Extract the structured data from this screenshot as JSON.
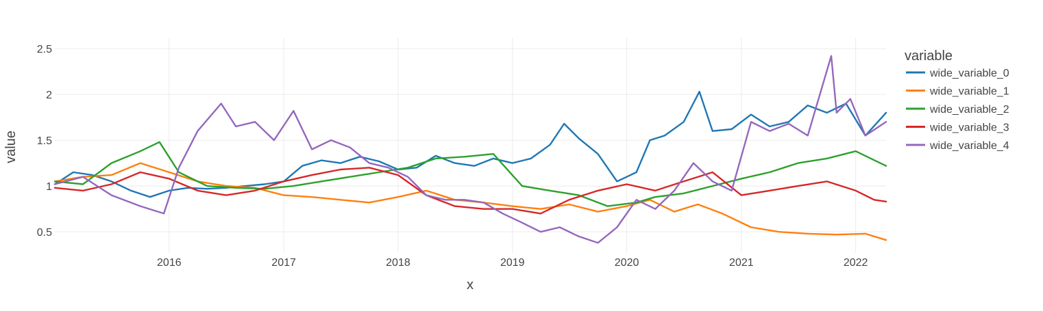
{
  "chart_data": {
    "type": "line",
    "title": "",
    "xlabel": "x",
    "ylabel": "value",
    "x_range": [
      "2015-01-01",
      "2022-04-08"
    ],
    "ylim": [
      0.27,
      2.62
    ],
    "x_ticks": [
      {
        "value": "2016-01-01",
        "label": "2016"
      },
      {
        "value": "2017-01-01",
        "label": "2017"
      },
      {
        "value": "2018-01-01",
        "label": "2018"
      },
      {
        "value": "2019-01-01",
        "label": "2019"
      },
      {
        "value": "2020-01-01",
        "label": "2020"
      },
      {
        "value": "2021-01-01",
        "label": "2021"
      },
      {
        "value": "2022-01-01",
        "label": "2022"
      }
    ],
    "y_ticks": [
      {
        "value": 0.5,
        "label": "0.5"
      },
      {
        "value": 1,
        "label": "1"
      },
      {
        "value": 1.5,
        "label": "1.5"
      },
      {
        "value": 2,
        "label": "2"
      },
      {
        "value": 2.5,
        "label": "2.5"
      }
    ],
    "grid": true,
    "legend": {
      "title": "variable",
      "position": "right"
    },
    "series": [
      {
        "name": "wide_variable_0",
        "color": "#1f77b4",
        "x": [
          "2015-01-01",
          "2015-03-01",
          "2015-05-01",
          "2015-07-01",
          "2015-09-01",
          "2015-11-01",
          "2016-01-01",
          "2016-03-01",
          "2016-05-01",
          "2016-07-01",
          "2016-09-01",
          "2016-11-01",
          "2017-01-01",
          "2017-03-01",
          "2017-05-01",
          "2017-07-01",
          "2017-09-01",
          "2017-11-01",
          "2018-01-01",
          "2018-03-01",
          "2018-05-01",
          "2018-07-01",
          "2018-09-01",
          "2018-11-01",
          "2019-01-01",
          "2019-03-01",
          "2019-05-01",
          "2019-06-15",
          "2019-08-01",
          "2019-10-01",
          "2019-12-01",
          "2020-02-01",
          "2020-03-15",
          "2020-05-01",
          "2020-07-01",
          "2020-08-20",
          "2020-10-01",
          "2020-12-01",
          "2021-02-01",
          "2021-04-01",
          "2021-06-01",
          "2021-08-01",
          "2021-10-01",
          "2021-12-01",
          "2022-02-01",
          "2022-04-08"
        ],
        "y": [
          1.02,
          1.15,
          1.12,
          1.05,
          0.95,
          0.88,
          0.95,
          0.98,
          0.97,
          0.98,
          1.0,
          1.02,
          1.05,
          1.22,
          1.28,
          1.25,
          1.32,
          1.27,
          1.18,
          1.2,
          1.33,
          1.25,
          1.22,
          1.3,
          1.25,
          1.3,
          1.45,
          1.68,
          1.52,
          1.35,
          1.05,
          1.15,
          1.5,
          1.55,
          1.7,
          2.03,
          1.6,
          1.62,
          1.78,
          1.65,
          1.7,
          1.88,
          1.8,
          1.9,
          1.55,
          1.8
        ]
      },
      {
        "name": "wide_variable_1",
        "color": "#ff7f0e",
        "x": [
          "2015-01-01",
          "2015-04-01",
          "2015-07-01",
          "2015-10-01",
          "2016-01-01",
          "2016-04-01",
          "2016-07-01",
          "2016-10-01",
          "2017-01-01",
          "2017-04-01",
          "2017-07-01",
          "2017-10-01",
          "2018-01-01",
          "2018-04-01",
          "2018-07-01",
          "2018-10-01",
          "2019-01-01",
          "2019-04-01",
          "2019-07-01",
          "2019-10-01",
          "2020-01-01",
          "2020-03-15",
          "2020-06-01",
          "2020-08-15",
          "2020-11-01",
          "2021-02-01",
          "2021-05-01",
          "2021-08-01",
          "2021-11-01",
          "2022-02-01",
          "2022-04-08"
        ],
        "y": [
          1.05,
          1.1,
          1.12,
          1.25,
          1.15,
          1.05,
          1.0,
          0.98,
          0.9,
          0.88,
          0.85,
          0.82,
          0.88,
          0.95,
          0.85,
          0.82,
          0.78,
          0.75,
          0.8,
          0.72,
          0.78,
          0.85,
          0.72,
          0.8,
          0.7,
          0.55,
          0.5,
          0.48,
          0.47,
          0.48,
          0.41
        ]
      },
      {
        "name": "wide_variable_2",
        "color": "#2ca02c",
        "x": [
          "2015-01-01",
          "2015-04-01",
          "2015-07-01",
          "2015-10-01",
          "2015-12-01",
          "2016-02-01",
          "2016-05-01",
          "2016-08-01",
          "2016-11-01",
          "2017-02-01",
          "2017-05-01",
          "2017-08-01",
          "2017-11-01",
          "2018-02-01",
          "2018-05-01",
          "2018-08-01",
          "2018-11-01",
          "2019-02-01",
          "2019-05-01",
          "2019-08-01",
          "2019-11-01",
          "2020-02-01",
          "2020-04-01",
          "2020-07-01",
          "2020-10-01",
          "2021-01-01",
          "2021-04-01",
          "2021-07-01",
          "2021-10-01",
          "2022-01-01",
          "2022-04-08"
        ],
        "y": [
          1.05,
          1.02,
          1.25,
          1.38,
          1.48,
          1.15,
          1.0,
          0.98,
          0.97,
          1.0,
          1.05,
          1.1,
          1.15,
          1.2,
          1.3,
          1.32,
          1.35,
          1.0,
          0.95,
          0.9,
          0.78,
          0.82,
          0.88,
          0.92,
          1.0,
          1.08,
          1.15,
          1.25,
          1.3,
          1.38,
          1.22
        ]
      },
      {
        "name": "wide_variable_3",
        "color": "#d62728",
        "x": [
          "2015-01-01",
          "2015-04-01",
          "2015-07-01",
          "2015-10-01",
          "2016-01-01",
          "2016-04-01",
          "2016-07-01",
          "2016-10-01",
          "2017-01-01",
          "2017-04-01",
          "2017-07-01",
          "2017-10-01",
          "2018-01-01",
          "2018-04-01",
          "2018-07-01",
          "2018-10-01",
          "2019-01-01",
          "2019-04-01",
          "2019-07-01",
          "2019-10-01",
          "2020-01-01",
          "2020-04-01",
          "2020-07-01",
          "2020-10-01",
          "2021-01-01",
          "2021-04-01",
          "2021-07-01",
          "2021-10-01",
          "2022-01-01",
          "2022-03-01",
          "2022-04-08"
        ],
        "y": [
          0.98,
          0.95,
          1.02,
          1.15,
          1.08,
          0.95,
          0.9,
          0.95,
          1.05,
          1.12,
          1.18,
          1.2,
          1.12,
          0.9,
          0.78,
          0.75,
          0.75,
          0.7,
          0.85,
          0.95,
          1.02,
          0.95,
          1.05,
          1.15,
          0.9,
          0.95,
          1.0,
          1.05,
          0.95,
          0.85,
          0.83
        ]
      },
      {
        "name": "wide_variable_4",
        "color": "#9467bd",
        "x": [
          "2015-01-01",
          "2015-04-01",
          "2015-07-01",
          "2015-10-01",
          "2015-12-15",
          "2016-02-01",
          "2016-04-01",
          "2016-06-15",
          "2016-08-01",
          "2016-10-01",
          "2016-12-01",
          "2017-02-01",
          "2017-04-01",
          "2017-06-01",
          "2017-08-01",
          "2017-10-01",
          "2017-12-01",
          "2018-02-01",
          "2018-04-01",
          "2018-06-01",
          "2018-08-01",
          "2018-10-01",
          "2018-12-01",
          "2019-02-01",
          "2019-04-01",
          "2019-06-01",
          "2019-08-01",
          "2019-10-01",
          "2019-12-01",
          "2020-02-01",
          "2020-04-01",
          "2020-06-01",
          "2020-08-01",
          "2020-10-01",
          "2020-12-01",
          "2021-02-01",
          "2021-04-01",
          "2021-06-01",
          "2021-08-01",
          "2021-10-15",
          "2021-11-01",
          "2021-12-15",
          "2022-02-01",
          "2022-04-08"
        ],
        "y": [
          1.02,
          1.1,
          0.9,
          0.78,
          0.7,
          1.2,
          1.6,
          1.9,
          1.65,
          1.7,
          1.5,
          1.82,
          1.4,
          1.5,
          1.42,
          1.25,
          1.2,
          1.1,
          0.9,
          0.85,
          0.85,
          0.82,
          0.7,
          0.6,
          0.5,
          0.55,
          0.45,
          0.38,
          0.55,
          0.85,
          0.75,
          0.95,
          1.25,
          1.05,
          0.95,
          1.7,
          1.6,
          1.68,
          1.55,
          2.42,
          1.8,
          1.95,
          1.55,
          1.7
        ]
      }
    ]
  }
}
